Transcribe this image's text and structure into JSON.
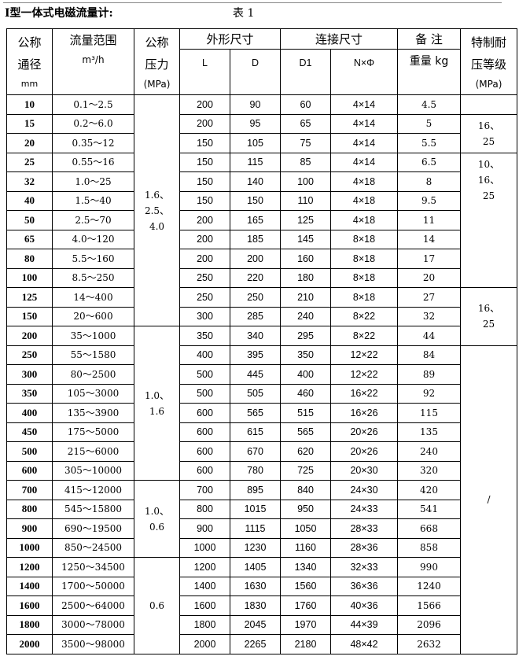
{
  "title": "I型一体式电磁流量计:",
  "table_no": "表  1",
  "headers": {
    "dn": [
      "公称",
      "通径",
      "mm"
    ],
    "flow": [
      "流量范围",
      "m³/h"
    ],
    "pn": [
      "公称",
      "压力",
      "(MPa)"
    ],
    "outer": "外形尺寸",
    "L": "L",
    "D": "D",
    "conn": "连接尺寸",
    "D1": "D1",
    "NxPhi": "N×Φ",
    "note": "备  注",
    "weight": "重量 kg",
    "special": [
      "特制耐",
      "压等级",
      "(MPa)"
    ]
  },
  "rows": [
    [
      "10",
      "0.1～2.5",
      "200",
      "90",
      "60",
      "4×14",
      "4.5"
    ],
    [
      "15",
      "0.2～6.0",
      "200",
      "95",
      "65",
      "4×14",
      "5"
    ],
    [
      "20",
      "0.35～12",
      "150",
      "105",
      "75",
      "4×14",
      "5.5"
    ],
    [
      "25",
      "0.55～16",
      "150",
      "115",
      "85",
      "4×14",
      "6.5"
    ],
    [
      "32",
      "1.0～25",
      "150",
      "140",
      "100",
      "4×18",
      "8"
    ],
    [
      "40",
      "1.5～40",
      "150",
      "150",
      "110",
      "4×18",
      "9.5"
    ],
    [
      "50",
      "2.5～70",
      "200",
      "165",
      "125",
      "4×18",
      "11"
    ],
    [
      "65",
      "4.0～120",
      "200",
      "185",
      "145",
      "8×18",
      "14"
    ],
    [
      "80",
      "5.5～160",
      "200",
      "200",
      "160",
      "8×18",
      "17"
    ],
    [
      "100",
      "8.5～250",
      "250",
      "220",
      "180",
      "8×18",
      "20"
    ],
    [
      "125",
      "14～400",
      "250",
      "250",
      "210",
      "8×18",
      "27"
    ],
    [
      "150",
      "20～600",
      "300",
      "285",
      "240",
      "8×22",
      "32"
    ],
    [
      "200",
      "35～1000",
      "350",
      "340",
      "295",
      "8×22",
      "44"
    ],
    [
      "250",
      "55～1580",
      "400",
      "395",
      "350",
      "12×22",
      "84"
    ],
    [
      "300",
      "80～2500",
      "500",
      "445",
      "400",
      "12×22",
      "89"
    ],
    [
      "350",
      "105～3000",
      "500",
      "505",
      "460",
      "16×22",
      "92"
    ],
    [
      "400",
      "135～3900",
      "600",
      "565",
      "515",
      "16×26",
      "115"
    ],
    [
      "450",
      "175～5000",
      "600",
      "615",
      "565",
      "20×26",
      "135"
    ],
    [
      "500",
      "215～6000",
      "600",
      "670",
      "620",
      "20×26",
      "240"
    ],
    [
      "600",
      "305～10000",
      "600",
      "780",
      "725",
      "20×30",
      "320"
    ],
    [
      "700",
      "415～12000",
      "700",
      "895",
      "840",
      "24×30",
      "420"
    ],
    [
      "800",
      "545～15800",
      "800",
      "1015",
      "950",
      "24×33",
      "541"
    ],
    [
      "900",
      "690～19500",
      "900",
      "1115",
      "1050",
      "28×33",
      "668"
    ],
    [
      "1000",
      "850～24500",
      "1000",
      "1230",
      "1160",
      "28×36",
      "858"
    ],
    [
      "1200",
      "1250～34500",
      "1200",
      "1405",
      "1340",
      "32×33",
      "990"
    ],
    [
      "1400",
      "1700～50000",
      "1400",
      "1630",
      "1560",
      "36×36",
      "1240"
    ],
    [
      "1600",
      "2500～64000",
      "1600",
      "1830",
      "1760",
      "40×36",
      "1566"
    ],
    [
      "1800",
      "3000～78000",
      "1800",
      "2045",
      "1970",
      "44×39",
      "2096"
    ],
    [
      "2000",
      "3500～98000",
      "2000",
      "2265",
      "2180",
      "48×42",
      "2632"
    ]
  ],
  "pressure_groups": [
    {
      "start": 0,
      "span": 12,
      "lines": [
        "1.6、",
        "2.5、",
        "4.0"
      ]
    },
    {
      "start": 12,
      "span": 8,
      "lines": [
        "1.0、",
        "1.6"
      ]
    },
    {
      "start": 20,
      "span": 4,
      "lines": [
        "1.0、",
        "0.6"
      ]
    },
    {
      "start": 24,
      "span": 5,
      "lines": [
        "0.6"
      ]
    }
  ],
  "special_groups": [
    {
      "start": 0,
      "span": 1,
      "lines": [],
      "top": false
    },
    {
      "start": 1,
      "span": 2,
      "lines": [
        "16、",
        "25"
      ],
      "top": false
    },
    {
      "start": 3,
      "span": 7,
      "lines": [
        "10、",
        "16、",
        "25"
      ],
      "top": true
    },
    {
      "start": 10,
      "span": 3,
      "lines": [
        "16、",
        "25"
      ],
      "top": false
    },
    {
      "start": 13,
      "span": 16,
      "lines": [
        "/"
      ],
      "top": false
    }
  ]
}
